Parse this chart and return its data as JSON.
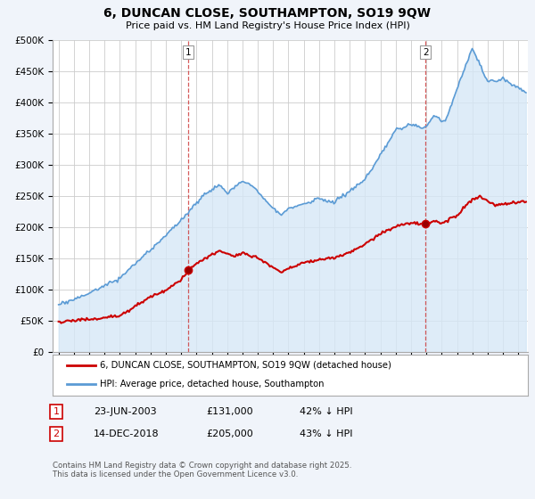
{
  "title": "6, DUNCAN CLOSE, SOUTHAMPTON, SO19 9QW",
  "subtitle": "Price paid vs. HM Land Registry's House Price Index (HPI)",
  "ylim": [
    0,
    500000
  ],
  "yticks": [
    0,
    50000,
    100000,
    150000,
    200000,
    250000,
    300000,
    350000,
    400000,
    450000,
    500000
  ],
  "ytick_labels": [
    "£0",
    "£50K",
    "£100K",
    "£150K",
    "£200K",
    "£250K",
    "£300K",
    "£350K",
    "£400K",
    "£450K",
    "£500K"
  ],
  "hpi_color": "#5b9bd5",
  "hpi_fill": "#d6e8f7",
  "price_color": "#cc0000",
  "vline_color": "#cc3333",
  "transaction1_year": 2003.47,
  "transaction1_price": 131000,
  "transaction2_year": 2018.95,
  "transaction2_price": 205000,
  "legend_house": "6, DUNCAN CLOSE, SOUTHAMPTON, SO19 9QW (detached house)",
  "legend_hpi": "HPI: Average price, detached house, Southampton",
  "footnote": "Contains HM Land Registry data © Crown copyright and database right 2025.\nThis data is licensed under the Open Government Licence v3.0.",
  "background_color": "#f0f4fa",
  "plot_bg": "#ffffff",
  "xlim_left": 1994.6,
  "xlim_right": 2025.6
}
